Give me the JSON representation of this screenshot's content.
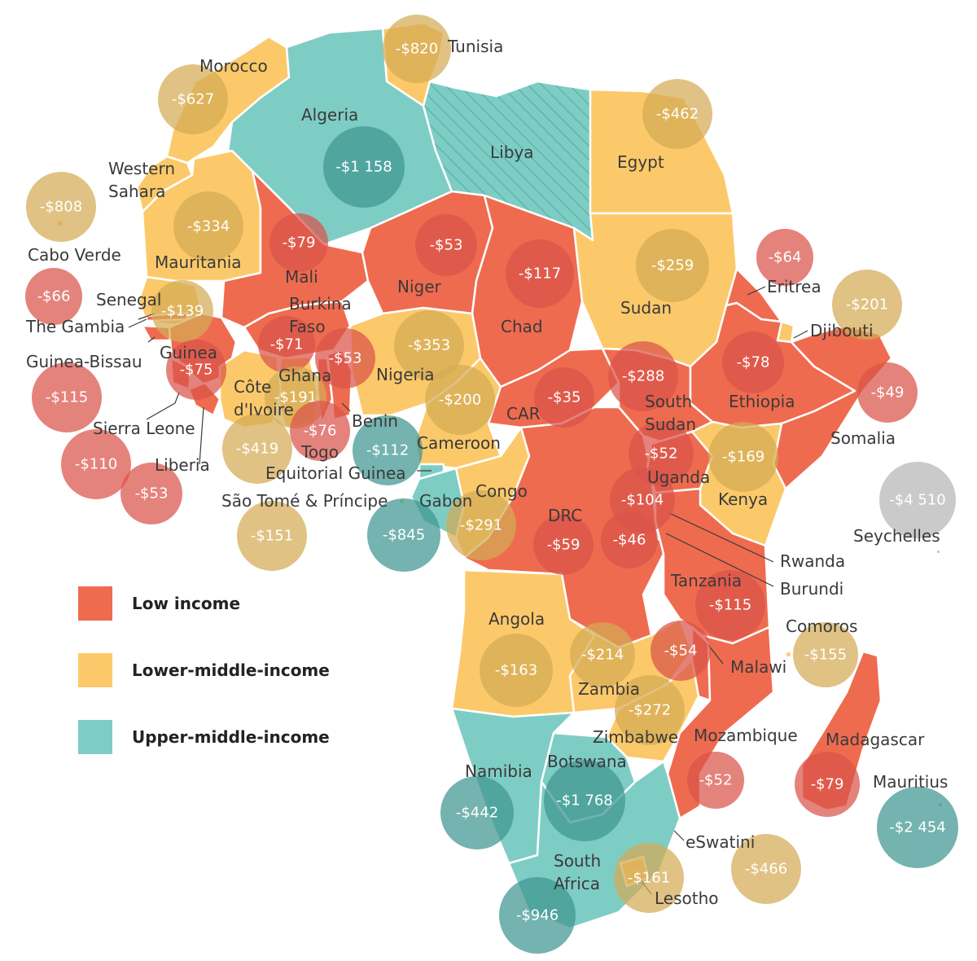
{
  "colors": {
    "low": "#ef6b4f",
    "lower_middle": "#fcc96a",
    "upper_middle": "#7ecdc5",
    "upper_middle_hatch": "#5fb5ad",
    "bubble_low": "#d9534a",
    "bubble_lower_middle": "#d4aa55",
    "bubble_upper_middle": "#3f9590",
    "bubble_none": "#b5b5b5"
  },
  "legend": [
    {
      "label": "Low income",
      "color_key": "low"
    },
    {
      "label": "Lower-middle-income",
      "color_key": "lower_middle"
    },
    {
      "label": "Upper-middle-income",
      "color_key": "upper_middle"
    }
  ],
  "countries": [
    {
      "name": "Morocco",
      "income": "lower_middle",
      "value": "-$627"
    },
    {
      "name": "Tunisia",
      "income": "lower_middle",
      "value": "-$820"
    },
    {
      "name": "Algeria",
      "income": "upper_middle",
      "value": "-$1 158"
    },
    {
      "name": "Libya",
      "income": "upper_middle",
      "value": ""
    },
    {
      "name": "Egypt",
      "income": "lower_middle",
      "value": "-$462"
    },
    {
      "name": "Western Sahara",
      "income": "lower_middle",
      "value": ""
    },
    {
      "name": "Cabo Verde",
      "income": "lower_middle",
      "value": "-$808"
    },
    {
      "name": "Mauritania",
      "income": "lower_middle",
      "value": "-$334"
    },
    {
      "name": "Mali",
      "income": "low",
      "value": "-$79"
    },
    {
      "name": "Niger",
      "income": "low",
      "value": "-$53"
    },
    {
      "name": "Chad",
      "income": "low",
      "value": "-$117"
    },
    {
      "name": "Sudan",
      "income": "lower_middle",
      "value": "-$259"
    },
    {
      "name": "Eritrea",
      "income": "low",
      "value": "-$64"
    },
    {
      "name": "Djibouti",
      "income": "lower_middle",
      "value": "-$201"
    },
    {
      "name": "Senegal",
      "income": "lower_middle",
      "value": "-$139"
    },
    {
      "name": "The Gambia",
      "income": "low",
      "value": "-$66"
    },
    {
      "name": "Guinea-Bissau",
      "income": "low",
      "value": "-$115"
    },
    {
      "name": "Guinea",
      "income": "low",
      "value": "-$75"
    },
    {
      "name": "Burkina Faso",
      "income": "low",
      "value": "-$71"
    },
    {
      "name": "Ghana",
      "income": "lower_middle",
      "value": "-$191"
    },
    {
      "name": "Benin",
      "income": "low",
      "value": "-$53"
    },
    {
      "name": "Nigeria",
      "income": "lower_middle",
      "value": "-$353"
    },
    {
      "name": "Cameroon",
      "income": "lower_middle",
      "value": "-$200"
    },
    {
      "name": "CAR",
      "income": "low",
      "value": "-$35"
    },
    {
      "name": "South Sudan",
      "income": "low",
      "value": "-$288"
    },
    {
      "name": "Ethiopia",
      "income": "low",
      "value": "-$78"
    },
    {
      "name": "Somalia",
      "income": "low",
      "value": "-$49"
    },
    {
      "name": "Sierra Leone",
      "income": "low",
      "value": "-$110"
    },
    {
      "name": "Liberia",
      "income": "low",
      "value": "-$53"
    },
    {
      "name": "Côte d'Ivoire",
      "income": "lower_middle",
      "value": "-$419"
    },
    {
      "name": "Togo",
      "income": "low",
      "value": "-$76"
    },
    {
      "name": "Equitorial Guinea",
      "income": "upper_middle",
      "value": "-$112"
    },
    {
      "name": "São Tomé & Príncipe",
      "income": "lower_middle",
      "value": "-$151"
    },
    {
      "name": "Gabon",
      "income": "upper_middle",
      "value": "-$845"
    },
    {
      "name": "Congo",
      "income": "lower_middle",
      "value": "-$291"
    },
    {
      "name": "DRC",
      "income": "low",
      "value": "-$59"
    },
    {
      "name": "Uganda",
      "income": "low",
      "value": "-$52"
    },
    {
      "name": "Kenya",
      "income": "lower_middle",
      "value": "-$169"
    },
    {
      "name": "Rwanda",
      "income": "low",
      "value": "-$104"
    },
    {
      "name": "Burundi",
      "income": "low",
      "value": "-$46"
    },
    {
      "name": "Seychelles",
      "income": "none",
      "value": "-$4 510"
    },
    {
      "name": "Tanzania",
      "income": "low",
      "value": "-$115"
    },
    {
      "name": "Comoros",
      "income": "lower_middle",
      "value": "-$155"
    },
    {
      "name": "Angola",
      "income": "lower_middle",
      "value": "-$163"
    },
    {
      "name": "Zambia",
      "income": "lower_middle",
      "value": "-$214"
    },
    {
      "name": "Malawi",
      "income": "low",
      "value": "-$54"
    },
    {
      "name": "Zimbabwe",
      "income": "lower_middle",
      "value": "-$272"
    },
    {
      "name": "Mozambique",
      "income": "low",
      "value": "-$52"
    },
    {
      "name": "Madagascar",
      "income": "low",
      "value": "-$79"
    },
    {
      "name": "Namibia",
      "income": "upper_middle",
      "value": "-$442"
    },
    {
      "name": "Botswana",
      "income": "upper_middle",
      "value": "-$1 768"
    },
    {
      "name": "Mauritius",
      "income": "upper_middle",
      "value": "-$2 454"
    },
    {
      "name": "eSwatini",
      "income": "lower_middle",
      "value": "-$466"
    },
    {
      "name": "South Africa",
      "income": "upper_middle",
      "value": "-$946"
    },
    {
      "name": "Lesotho",
      "income": "lower_middle",
      "value": "-$161"
    }
  ]
}
